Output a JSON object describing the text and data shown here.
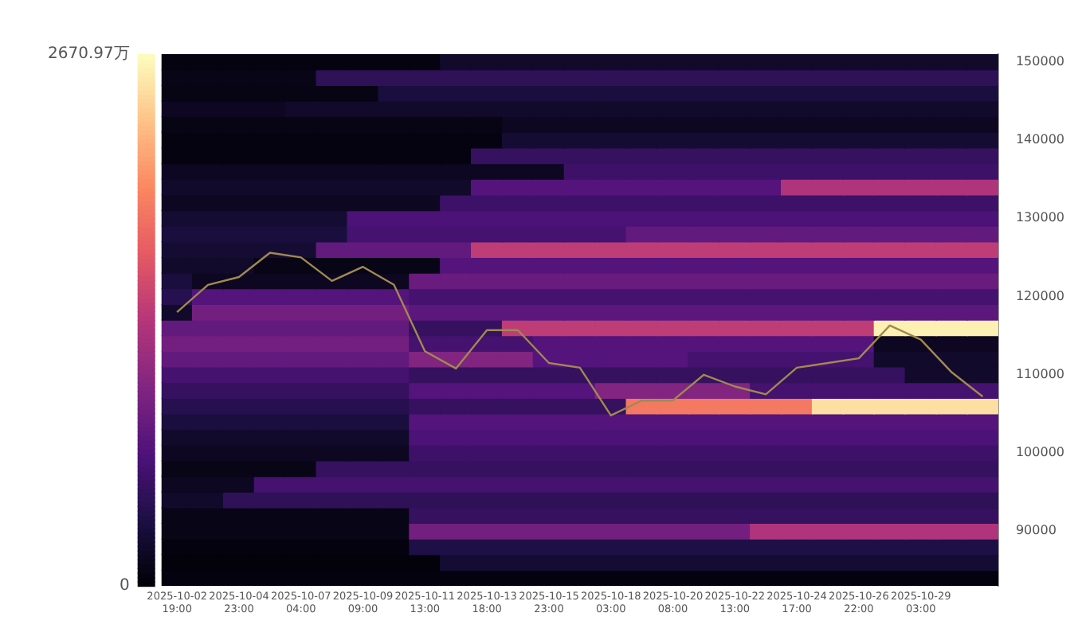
{
  "chart_data": {
    "type": "heatmap",
    "categories": [
      "2025-10-02 19:00",
      null,
      "2025-10-04 23:00",
      null,
      "2025-10-07 04:00",
      null,
      "2025-10-09 09:00",
      null,
      "2025-10-11 13:00",
      null,
      "2025-10-13 18:00",
      null,
      "2025-10-15 23:00",
      null,
      "2025-10-18 03:00",
      null,
      "2025-10-20 08:00",
      null,
      "2025-10-22 13:00",
      null,
      "2025-10-24 17:00",
      null,
      "2025-10-26 22:00",
      null,
      "2025-10-29 03:00",
      null,
      null
    ],
    "ylim": [
      83000,
      151000
    ],
    "yticks": [
      90000,
      100000,
      110000,
      120000,
      130000,
      140000,
      150000
    ],
    "clim": [
      0,
      2670.97
    ],
    "cticks": [
      {
        "value": 0,
        "label": "0"
      },
      {
        "value": 2670.97,
        "label": "2670.97万"
      }
    ],
    "cells": [
      [
        60,
        60,
        60,
        60,
        60,
        60,
        60,
        60,
        60,
        200,
        200,
        200,
        200,
        200,
        200,
        200,
        200,
        200,
        200,
        200,
        200,
        200,
        200,
        200,
        200,
        200,
        200
      ],
      [
        100,
        100,
        100,
        100,
        100,
        450,
        450,
        450,
        450,
        450,
        450,
        450,
        450,
        450,
        450,
        450,
        450,
        450,
        450,
        450,
        450,
        450,
        450,
        450,
        450,
        450,
        450
      ],
      [
        80,
        80,
        80,
        80,
        80,
        80,
        80,
        300,
        300,
        300,
        300,
        300,
        300,
        300,
        300,
        300,
        300,
        300,
        300,
        300,
        300,
        300,
        300,
        300,
        300,
        300,
        300
      ],
      [
        150,
        150,
        150,
        150,
        200,
        200,
        200,
        200,
        200,
        200,
        200,
        200,
        200,
        200,
        200,
        200,
        200,
        200,
        200,
        200,
        200,
        200,
        200,
        200,
        200,
        200,
        200
      ],
      [
        80,
        80,
        80,
        80,
        80,
        80,
        80,
        80,
        80,
        80,
        80,
        150,
        150,
        150,
        150,
        150,
        150,
        150,
        150,
        150,
        150,
        150,
        150,
        150,
        150,
        150,
        150
      ],
      [
        60,
        60,
        60,
        60,
        60,
        60,
        60,
        60,
        60,
        60,
        60,
        250,
        250,
        250,
        250,
        250,
        250,
        250,
        250,
        250,
        250,
        250,
        250,
        250,
        250,
        250,
        250
      ],
      [
        60,
        60,
        60,
        60,
        60,
        60,
        60,
        60,
        60,
        60,
        500,
        500,
        500,
        500,
        500,
        500,
        500,
        500,
        500,
        500,
        500,
        500,
        500,
        500,
        500,
        500,
        500
      ],
      [
        150,
        150,
        150,
        150,
        150,
        150,
        150,
        150,
        150,
        150,
        150,
        150,
        150,
        550,
        550,
        550,
        550,
        550,
        550,
        550,
        550,
        550,
        550,
        550,
        550,
        550,
        550
      ],
      [
        200,
        200,
        200,
        200,
        200,
        200,
        200,
        200,
        200,
        200,
        700,
        700,
        700,
        700,
        700,
        700,
        700,
        700,
        700,
        700,
        1300,
        1300,
        1300,
        1300,
        1300,
        1300,
        1300
      ],
      [
        150,
        150,
        150,
        150,
        150,
        150,
        150,
        150,
        150,
        550,
        550,
        550,
        550,
        550,
        550,
        550,
        550,
        550,
        550,
        550,
        550,
        550,
        550,
        550,
        550,
        550,
        550
      ],
      [
        250,
        250,
        250,
        250,
        250,
        250,
        650,
        650,
        650,
        650,
        650,
        650,
        650,
        650,
        650,
        650,
        650,
        650,
        650,
        650,
        650,
        650,
        650,
        650,
        650,
        650,
        650
      ],
      [
        300,
        300,
        300,
        300,
        300,
        300,
        600,
        600,
        600,
        600,
        600,
        600,
        600,
        600,
        600,
        800,
        800,
        800,
        800,
        800,
        800,
        800,
        800,
        800,
        800,
        800,
        800
      ],
      [
        250,
        250,
        250,
        250,
        250,
        800,
        800,
        800,
        800,
        800,
        1400,
        1400,
        1400,
        1400,
        1400,
        1400,
        1400,
        1400,
        1400,
        1400,
        1400,
        1400,
        1400,
        1400,
        1400,
        1400,
        1400
      ],
      [
        200,
        200,
        200,
        100,
        100,
        100,
        100,
        100,
        100,
        700,
        700,
        700,
        700,
        700,
        700,
        700,
        700,
        700,
        700,
        700,
        700,
        700,
        700,
        700,
        700,
        700,
        700
      ],
      [
        300,
        150,
        150,
        150,
        150,
        150,
        150,
        150,
        850,
        850,
        850,
        850,
        850,
        850,
        850,
        850,
        850,
        850,
        850,
        850,
        850,
        850,
        850,
        850,
        850,
        850,
        850
      ],
      [
        400,
        700,
        700,
        700,
        700,
        700,
        700,
        700,
        600,
        600,
        600,
        600,
        600,
        600,
        600,
        600,
        600,
        600,
        600,
        600,
        600,
        600,
        600,
        600,
        600,
        600,
        600
      ],
      [
        200,
        900,
        900,
        900,
        900,
        900,
        900,
        900,
        750,
        750,
        750,
        750,
        750,
        750,
        750,
        750,
        750,
        750,
        750,
        750,
        750,
        750,
        750,
        750,
        750,
        750,
        750
      ],
      [
        800,
        800,
        800,
        800,
        800,
        800,
        800,
        800,
        500,
        500,
        500,
        1400,
        1400,
        1400,
        1400,
        1400,
        1400,
        1400,
        1400,
        1400,
        1400,
        1400,
        1400,
        2600,
        2600,
        2600,
        2600
      ],
      [
        900,
        900,
        900,
        900,
        900,
        900,
        900,
        900,
        600,
        600,
        600,
        600,
        700,
        700,
        700,
        700,
        700,
        700,
        700,
        700,
        700,
        700,
        700,
        150,
        150,
        150,
        150
      ],
      [
        800,
        800,
        800,
        800,
        800,
        800,
        800,
        800,
        1000,
        1000,
        1000,
        1000,
        700,
        700,
        700,
        700,
        700,
        600,
        600,
        600,
        600,
        600,
        600,
        200,
        200,
        200,
        200
      ],
      [
        600,
        600,
        600,
        600,
        600,
        600,
        600,
        600,
        500,
        500,
        500,
        500,
        500,
        500,
        500,
        500,
        500,
        500,
        500,
        500,
        500,
        500,
        500,
        500,
        200,
        200,
        200
      ],
      [
        500,
        500,
        500,
        500,
        500,
        500,
        500,
        500,
        700,
        700,
        700,
        700,
        700,
        700,
        1000,
        1000,
        1000,
        1000,
        1000,
        600,
        600,
        600,
        600,
        600,
        600,
        600,
        600
      ],
      [
        400,
        400,
        400,
        400,
        400,
        400,
        400,
        400,
        500,
        500,
        500,
        500,
        500,
        500,
        500,
        1900,
        1900,
        1900,
        1900,
        1900,
        1900,
        2500,
        2500,
        2500,
        2500,
        2500,
        2500
      ],
      [
        300,
        300,
        300,
        300,
        300,
        300,
        300,
        300,
        700,
        700,
        700,
        700,
        700,
        700,
        700,
        700,
        700,
        700,
        700,
        700,
        700,
        700,
        700,
        700,
        700,
        700,
        700
      ],
      [
        200,
        200,
        200,
        200,
        200,
        200,
        200,
        200,
        650,
        650,
        650,
        650,
        650,
        650,
        650,
        650,
        650,
        650,
        650,
        650,
        650,
        650,
        650,
        650,
        650,
        650,
        650
      ],
      [
        150,
        150,
        150,
        150,
        150,
        150,
        150,
        150,
        550,
        550,
        550,
        550,
        550,
        550,
        550,
        550,
        550,
        550,
        550,
        550,
        550,
        550,
        550,
        550,
        550,
        550,
        550
      ],
      [
        100,
        100,
        100,
        100,
        100,
        500,
        500,
        500,
        500,
        500,
        500,
        500,
        500,
        500,
        500,
        500,
        500,
        500,
        500,
        500,
        500,
        500,
        500,
        500,
        500,
        500,
        500
      ],
      [
        150,
        150,
        150,
        600,
        600,
        600,
        600,
        600,
        600,
        600,
        600,
        600,
        600,
        600,
        600,
        600,
        600,
        600,
        600,
        600,
        600,
        600,
        600,
        600,
        600,
        600,
        600
      ],
      [
        200,
        200,
        450,
        450,
        450,
        450,
        450,
        450,
        450,
        450,
        450,
        450,
        450,
        450,
        450,
        450,
        450,
        450,
        450,
        450,
        450,
        450,
        450,
        450,
        450,
        450,
        450
      ],
      [
        100,
        100,
        100,
        100,
        100,
        100,
        100,
        100,
        500,
        500,
        500,
        500,
        500,
        500,
        500,
        500,
        500,
        500,
        500,
        500,
        500,
        500,
        500,
        500,
        500,
        500,
        500
      ],
      [
        100,
        100,
        100,
        100,
        100,
        100,
        100,
        100,
        900,
        900,
        900,
        900,
        900,
        900,
        900,
        900,
        900,
        900,
        900,
        1300,
        1300,
        1300,
        1300,
        1300,
        1300,
        1300,
        1300
      ],
      [
        50,
        50,
        50,
        50,
        50,
        50,
        50,
        50,
        350,
        350,
        350,
        350,
        350,
        350,
        350,
        350,
        350,
        350,
        350,
        350,
        350,
        350,
        350,
        350,
        350,
        350,
        350
      ],
      [
        30,
        30,
        30,
        30,
        30,
        30,
        30,
        30,
        30,
        250,
        250,
        250,
        250,
        250,
        250,
        250,
        250,
        250,
        250,
        250,
        250,
        250,
        250,
        250,
        250,
        250,
        250
      ],
      [
        50,
        50,
        50,
        50,
        50,
        50,
        50,
        50,
        50,
        50,
        50,
        50,
        50,
        50,
        50,
        50,
        50,
        50,
        50,
        50,
        50,
        50,
        50,
        50,
        50,
        50,
        50
      ]
    ],
    "series": [
      {
        "type": "line",
        "color": "#a08a50",
        "values": [
          118000,
          121500,
          122500,
          125600,
          125000,
          122000,
          123800,
          121500,
          113000,
          110800,
          115700,
          115700,
          111500,
          110900,
          104800,
          106700,
          106700,
          110000,
          108500,
          107500,
          110900,
          111500,
          112100,
          116300,
          114500,
          110300,
          107200
        ]
      }
    ]
  }
}
